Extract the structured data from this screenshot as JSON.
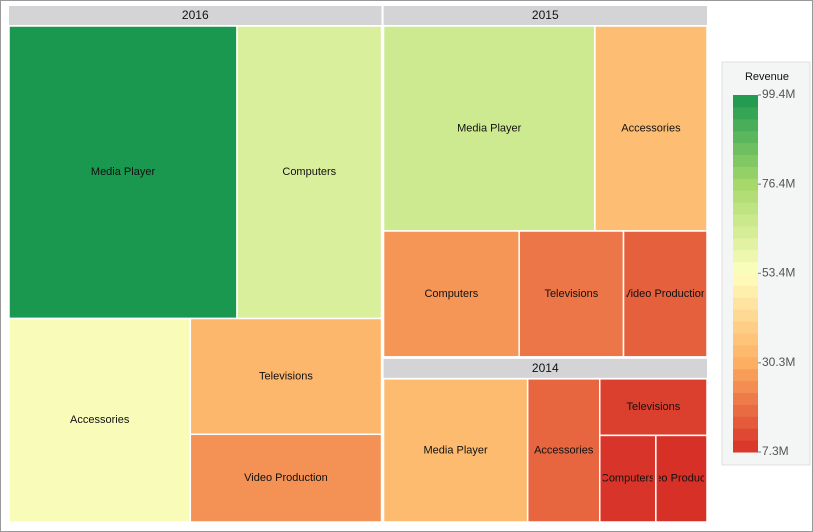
{
  "chart_data": {
    "type": "treemap",
    "groups": [
      {
        "name": "2016",
        "categories": [
          "Media Player",
          "Computers",
          "Accessories",
          "Televisions",
          "Video Production"
        ],
        "values": [
          99400000,
          63000000,
          55000000,
          33000000,
          25000000
        ]
      },
      {
        "name": "2015",
        "categories": [
          "Media Player",
          "Accessories",
          "Computers",
          "Televisions",
          "Video Production"
        ],
        "values": [
          66000000,
          35000000,
          26000000,
          20000000,
          16000000
        ]
      },
      {
        "name": "2014",
        "categories": [
          "Media Player",
          "Accessories",
          "Televisions",
          "Computers",
          "Video Production"
        ],
        "values": [
          34000000,
          17000000,
          10000000,
          8000000,
          7300000
        ]
      }
    ],
    "color_scale": {
      "title": "Revenue",
      "ticks": [
        {
          "value": 7300000,
          "label": "7.3M"
        },
        {
          "value": 30300000,
          "label": "30.3M"
        },
        {
          "value": 53400000,
          "label": "53.4M"
        },
        {
          "value": 76400000,
          "label": "76.4M"
        },
        {
          "value": 99400000,
          "label": "99.4M"
        }
      ],
      "colors": [
        "#d73027",
        "#fdae61",
        "#ffffbf",
        "#a6d96a",
        "#1a9850"
      ]
    }
  }
}
